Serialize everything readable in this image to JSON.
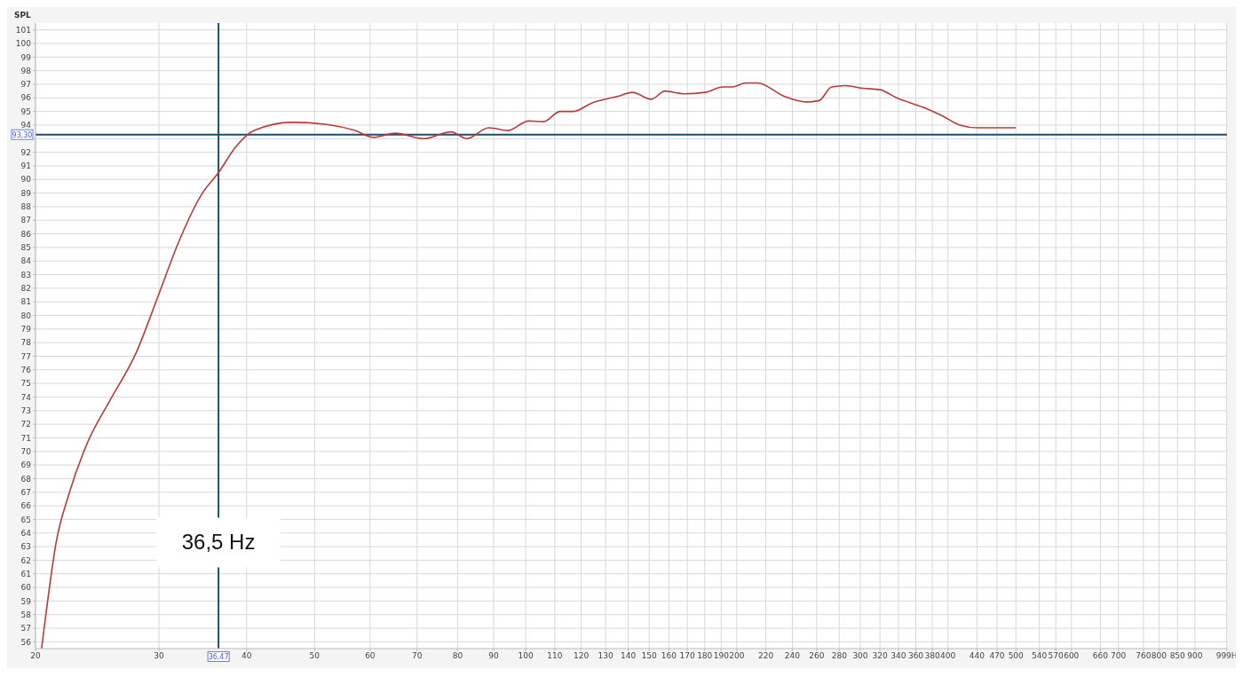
{
  "chart_data": {
    "type": "line",
    "ylabel": "SPL",
    "x": [
      20.4,
      20.8,
      21.4,
      22.3,
      23.7,
      25.5,
      27.8,
      30,
      32,
      34.5,
      36.47,
      38.6,
      41,
      46.5,
      52,
      57.1,
      60.6,
      65.2,
      71.5,
      78.2,
      82.4,
      88.6,
      94.3,
      101,
      106,
      112,
      117,
      124,
      135,
      142,
      151,
      158,
      168,
      180,
      191,
      197,
      206,
      214,
      234,
      251,
      262,
      273,
      286,
      303,
      320,
      338,
      369,
      392,
      416,
      441,
      500
    ],
    "series": [
      {
        "color": "#b83a3a",
        "values": [
          55.5,
          58.9,
          63.3,
          66.8,
          70.6,
          73.7,
          77.2,
          81.6,
          85.4,
          88.9,
          90.5,
          92.4,
          93.6,
          94.2,
          94.05,
          93.6,
          93.1,
          93.4,
          93.0,
          93.5,
          93.0,
          93.8,
          93.6,
          94.3,
          94.25,
          95.0,
          95.0,
          95.6,
          96.1,
          96.4,
          95.9,
          96.5,
          96.3,
          96.4,
          96.8,
          96.8,
          97.1,
          97.1,
          96.1,
          95.7,
          95.8,
          96.8,
          96.9,
          96.7,
          96.6,
          96.0,
          95.3,
          94.7,
          94.0,
          93.8,
          93.8
        ]
      }
    ],
    "log": "x",
    "xlim": [
      20,
      1000
    ],
    "xticks": [
      20,
      30,
      40,
      50,
      60,
      70,
      80,
      90,
      100,
      110,
      120,
      130,
      140,
      150,
      160,
      170,
      180,
      190,
      200,
      220,
      240,
      260,
      280,
      300,
      320,
      340,
      360,
      380,
      400,
      440,
      470,
      500,
      540,
      570,
      600,
      660,
      700,
      760,
      800,
      850,
      900,
      {
        "value": 999,
        "label": "999H"
      }
    ],
    "ylim": [
      55.5,
      101.5
    ],
    "yticks": [
      56,
      57,
      58,
      59,
      60,
      61,
      62,
      63,
      64,
      65,
      66,
      67,
      68,
      69,
      70,
      71,
      72,
      73,
      74,
      75,
      76,
      77,
      78,
      79,
      80,
      81,
      82,
      83,
      84,
      85,
      86,
      87,
      88,
      89,
      90,
      91,
      92,
      {
        "value": 93,
        "label": null
      },
      94,
      95,
      96,
      97,
      98,
      99,
      100,
      101
    ],
    "grid": true,
    "marker": "none",
    "line_style": "solid",
    "ref_lines": [
      {
        "axis": "y",
        "value": 93.3,
        "label": "93,30",
        "color": "#1f4e6b"
      },
      {
        "axis": "x",
        "value": 36.47,
        "label": "36,47",
        "color": "#1f4e6b"
      }
    ],
    "annotations": [
      {
        "text": "36,5 Hz",
        "x": 36.47,
        "y": 63.3
      }
    ]
  }
}
